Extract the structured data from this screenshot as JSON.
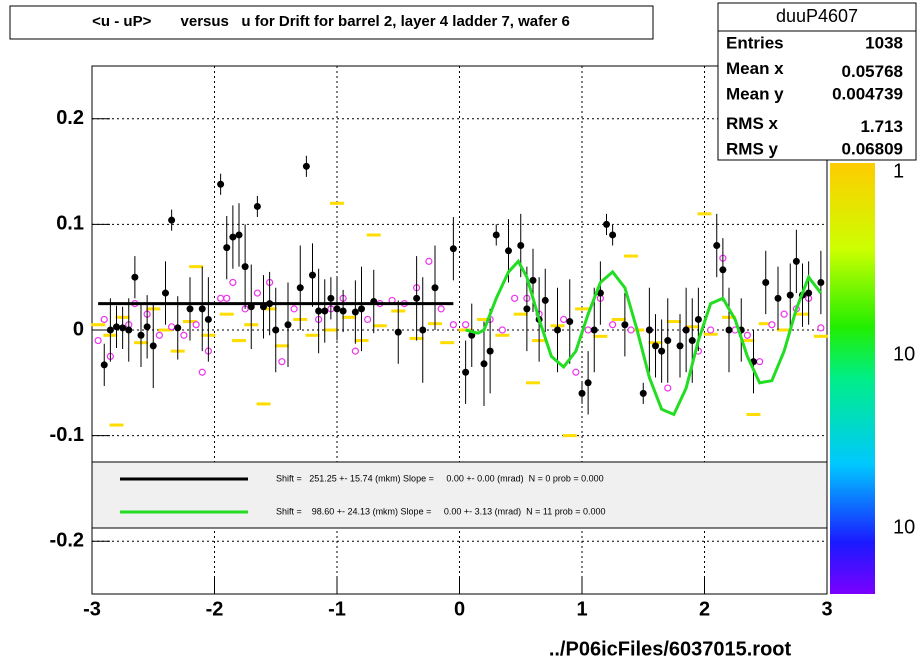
{
  "chart_data": {
    "type": "scatter",
    "title": "<u - uP>       versus   u for Drift for barrel 2, layer 4 ladder 7, wafer 6",
    "footer": "../P06icFiles/6037015.root",
    "xlim": [
      -3,
      3
    ],
    "ylim": [
      -0.25,
      0.25
    ],
    "xticks": [
      -3,
      -2,
      -1,
      0,
      1,
      2,
      3
    ],
    "yticks": [
      -0.2,
      -0.1,
      0,
      0.1,
      0.2
    ],
    "grid": true,
    "stats": {
      "title": "duuP4607",
      "rows": [
        {
          "label": "Entries",
          "value": 1038
        },
        {
          "label": "Mean x",
          "value": 0.05768
        },
        {
          "label": "Mean y",
          "value": 0.004739
        },
        {
          "label": "RMS x",
          "value": 1.713
        },
        {
          "label": "RMS y",
          "value": 0.06809
        }
      ]
    },
    "palette_labels": [
      "1",
      "10",
      "10"
    ],
    "legend": [
      {
        "text": "Shift =   251.25 +- 15.74 (mkm) Slope =     0.00 +- 0.00 (mrad)  N = 0 prob = 0.000",
        "color": "#000000"
      },
      {
        "text": "Shift =    98.60 +- 24.13 (mkm) Slope =     0.00 +- 3.13 (mrad)  N = 11 prob = 0.000",
        "color": "#22dd22"
      }
    ],
    "series": [
      {
        "marker": "dash",
        "color": "#ffdd00",
        "x": [
          -2.95,
          -2.85,
          -2.75,
          -2.6,
          -2.5,
          -2.4,
          -2.3,
          -2.2,
          -2.05,
          -1.9,
          -1.8,
          -1.7,
          -1.55,
          -1.45,
          -1.3,
          -1.2,
          -1.05,
          -0.9,
          -0.8,
          -0.65,
          -0.5,
          -0.35,
          -0.2,
          -0.1,
          0.05,
          0.2,
          0.35,
          0.5,
          0.65,
          0.8,
          1.0,
          1.15,
          1.3,
          1.45,
          1.6,
          1.75,
          1.9,
          2.05,
          2.2,
          2.35,
          2.5,
          2.65,
          2.8,
          2.95,
          -2.15,
          -1.6,
          -0.7,
          0.6,
          1.4,
          2.4,
          -2.8,
          -1.0,
          0.9,
          2.0
        ],
        "values": [
          0.005,
          -0.005,
          0.012,
          -0.012,
          0.02,
          0.0,
          -0.02,
          0.008,
          -0.005,
          0.015,
          -0.01,
          0.005,
          0.02,
          -0.015,
          0.01,
          -0.005,
          0.0,
          0.012,
          -0.01,
          0.004,
          0.018,
          -0.008,
          0.006,
          -0.012,
          0.0,
          0.01,
          -0.005,
          0.015,
          -0.01,
          0.004,
          0.02,
          -0.006,
          0.01,
          0.0,
          -0.012,
          0.008,
          0.003,
          -0.004,
          0.012,
          -0.01,
          0.006,
          0.0,
          0.015,
          -0.006,
          0.06,
          -0.07,
          0.09,
          -0.05,
          0.07,
          -0.08,
          -0.09,
          0.12,
          -0.1,
          0.11
        ]
      },
      {
        "marker": "open-circle",
        "color": "#ee33ee",
        "x": [
          -2.95,
          -2.9,
          -2.85,
          -2.7,
          -2.65,
          -2.55,
          -2.45,
          -2.35,
          -2.25,
          -2.15,
          -2.1,
          -2.05,
          -1.95,
          -1.9,
          -1.85,
          -1.75,
          -1.65,
          -1.55,
          -1.45,
          -1.35,
          -1.15,
          -1.05,
          -0.95,
          -0.85,
          -0.75,
          -0.65,
          -0.55,
          -0.45,
          -0.35,
          -0.25,
          -0.15,
          -0.05,
          0.05,
          0.25,
          0.35,
          0.45,
          0.55,
          0.65,
          0.85,
          0.95,
          1.05,
          1.15,
          1.25,
          1.4,
          1.55,
          1.7,
          1.85,
          1.95,
          2.05,
          2.15,
          2.25,
          2.35,
          2.45,
          2.55,
          2.65,
          2.75,
          2.85,
          2.95
        ],
        "values": [
          -0.01,
          0.01,
          -0.025,
          0.005,
          0.025,
          0.015,
          -0.005,
          0.003,
          -0.005,
          0.005,
          -0.04,
          -0.02,
          0.03,
          0.03,
          0.045,
          0.02,
          0.035,
          0.045,
          -0.03,
          0.02,
          0.01,
          0.02,
          0.03,
          -0.02,
          0.01,
          0.025,
          0.028,
          0.025,
          0.04,
          0.065,
          0.02,
          0.005,
          0.005,
          0.01,
          0.0,
          0.03,
          0.03,
          0.015,
          0.01,
          -0.04,
          0.0,
          0.03,
          0.005,
          0.0,
          0.0,
          -0.055,
          0.0,
          -0.02,
          0.0,
          0.068,
          0.0,
          -0.005,
          -0.03,
          0.005,
          0.015,
          0.02,
          0.03,
          0.002
        ]
      },
      {
        "marker": "filled-circle",
        "color": "#000000",
        "x": [
          -2.9,
          -2.85,
          -2.8,
          -2.75,
          -2.7,
          -2.65,
          -2.6,
          -2.55,
          -2.5,
          -2.4,
          -2.35,
          -2.3,
          -2.2,
          -2.1,
          -2.05,
          -1.95,
          -1.9,
          -1.85,
          -1.8,
          -1.75,
          -1.7,
          -1.65,
          -1.6,
          -1.55,
          -1.5,
          -1.4,
          -1.3,
          -1.25,
          -1.2,
          -1.15,
          -1.1,
          -1.05,
          -1.0,
          -0.95,
          -0.85,
          -0.8,
          -0.7,
          -0.5,
          -0.35,
          -0.3,
          -0.2,
          -0.05,
          0.05,
          0.1,
          0.2,
          0.25,
          0.3,
          0.4,
          0.5,
          0.55,
          0.6,
          0.65,
          0.7,
          0.8,
          0.9,
          1.0,
          1.05,
          1.1,
          1.15,
          1.2,
          1.25,
          1.35,
          1.5,
          1.55,
          1.6,
          1.65,
          1.7,
          1.8,
          1.85,
          1.9,
          1.95,
          2.1,
          2.15,
          2.2,
          2.3,
          2.4,
          2.5,
          2.6,
          2.7,
          2.75,
          2.8,
          2.85,
          2.95
        ],
        "values": [
          -0.033,
          0.0,
          0.003,
          0.002,
          0.0,
          0.05,
          -0.005,
          0.003,
          -0.015,
          0.035,
          0.104,
          0.002,
          0.02,
          0.02,
          0.01,
          0.138,
          0.078,
          0.088,
          0.09,
          0.06,
          0.022,
          0.117,
          0.022,
          0.025,
          0.0,
          0.005,
          0.04,
          0.155,
          0.052,
          0.018,
          0.018,
          0.03,
          0.02,
          0.018,
          0.017,
          0.02,
          0.027,
          -0.002,
          0.03,
          0.0,
          0.04,
          0.077,
          -0.04,
          -0.005,
          -0.032,
          -0.02,
          0.09,
          0.075,
          0.08,
          0.02,
          0.047,
          0.01,
          0.028,
          0.0,
          0.008,
          -0.06,
          -0.05,
          0.0,
          0.035,
          0.1,
          0.09,
          0.005,
          -0.06,
          0.0,
          -0.015,
          -0.02,
          -0.01,
          -0.015,
          0.0,
          -0.01,
          0.01,
          0.08,
          0.057,
          0.0,
          0.0,
          -0.03,
          0.045,
          0.03,
          0.033,
          0.065,
          0.033,
          0.035,
          0.045
        ],
        "errors": [
          0.02,
          0.03,
          0.02,
          0.02,
          0.03,
          0.02,
          0.03,
          0.03,
          0.04,
          0.03,
          0.01,
          0.03,
          0.03,
          0.04,
          0.04,
          0.01,
          0.03,
          0.03,
          0.03,
          0.04,
          0.04,
          0.01,
          0.03,
          0.03,
          0.04,
          0.04,
          0.04,
          0.01,
          0.03,
          0.04,
          0.03,
          0.02,
          0.03,
          0.02,
          0.03,
          0.04,
          0.03,
          0.03,
          0.04,
          0.05,
          0.04,
          0.03,
          0.03,
          0.03,
          0.04,
          0.04,
          0.01,
          0.03,
          0.03,
          0.04,
          0.03,
          0.04,
          0.03,
          0.04,
          0.04,
          0.01,
          0.03,
          0.04,
          0.03,
          0.01,
          0.01,
          0.03,
          0.01,
          0.04,
          0.03,
          0.03,
          0.04,
          0.03,
          0.04,
          0.04,
          0.03,
          0.03,
          0.03,
          0.04,
          0.03,
          0.03,
          0.03,
          0.03,
          0.03,
          0.03,
          0.03,
          0.03,
          0.03
        ]
      },
      {
        "marker": "line",
        "color": "#000000",
        "width": 3,
        "x": [
          -2.95,
          -0.05
        ],
        "values": [
          0.025,
          0.025
        ]
      },
      {
        "marker": "line",
        "color": "#22dd22",
        "width": 3,
        "x": [
          0.05,
          0.15,
          0.2,
          0.3,
          0.4,
          0.48,
          0.55,
          0.65,
          0.75,
          0.85,
          0.95,
          1.05,
          1.15,
          1.25,
          1.35,
          1.45,
          1.55,
          1.65,
          1.75,
          1.85,
          1.95,
          2.05,
          2.15,
          2.25,
          2.35,
          2.45,
          2.55,
          2.65,
          2.75,
          2.85,
          2.95
        ],
        "values": [
          0.0,
          -0.003,
          0.0,
          0.03,
          0.055,
          0.065,
          0.05,
          0.01,
          -0.025,
          -0.035,
          -0.02,
          0.015,
          0.045,
          0.055,
          0.04,
          0.0,
          -0.045,
          -0.075,
          -0.08,
          -0.055,
          -0.01,
          0.025,
          0.03,
          0.01,
          -0.025,
          -0.05,
          -0.048,
          -0.02,
          0.02,
          0.05,
          0.035
        ]
      }
    ]
  }
}
